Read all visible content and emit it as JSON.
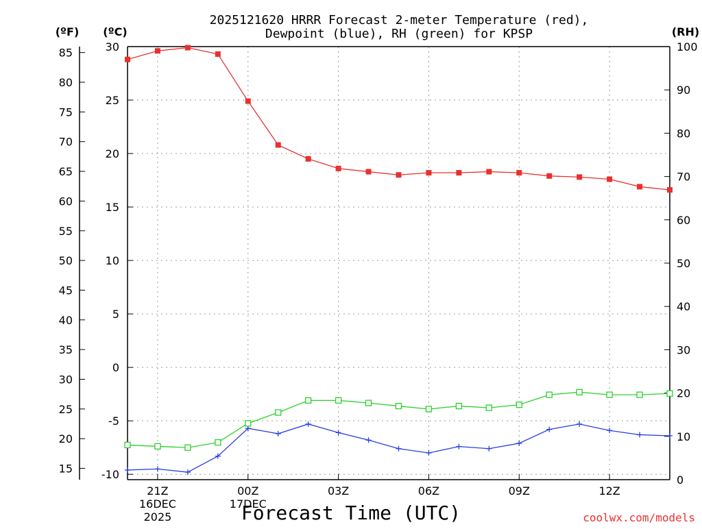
{
  "chart_data": {
    "type": "line",
    "title": "2025121620 HRRR Forecast 2-meter Temperature (red),",
    "subtitle": "Dewpoint (blue), RH (green) for KPSP",
    "xlabel": "Forecast Time (UTC)",
    "credit": "coolwx.com/models",
    "units": {
      "fahrenheit": "(ºF)",
      "celsius": "(ºC)",
      "rh": "(RH)"
    },
    "x_hours": [
      20,
      21,
      22,
      23,
      24,
      25,
      26,
      27,
      28,
      29,
      30,
      31,
      32,
      33,
      34,
      35,
      36,
      37,
      38
    ],
    "xlim": [
      20,
      38
    ],
    "x_ticks": [
      {
        "x": 21,
        "lines": [
          "21Z",
          "16DEC",
          "2025"
        ]
      },
      {
        "x": 24,
        "lines": [
          "00Z",
          "17DEC"
        ]
      },
      {
        "x": 27,
        "lines": [
          "03Z"
        ]
      },
      {
        "x": 30,
        "lines": [
          "06Z"
        ]
      },
      {
        "x": 33,
        "lines": [
          "09Z"
        ]
      },
      {
        "x": 36,
        "lines": [
          "12Z"
        ]
      }
    ],
    "y_celsius": {
      "range": [
        -10.5,
        30
      ],
      "ticks": [
        -10,
        -5,
        0,
        5,
        10,
        15,
        20,
        25,
        30
      ]
    },
    "y_fahrenheit": {
      "ticks": [
        15,
        20,
        25,
        30,
        35,
        40,
        45,
        50,
        55,
        60,
        65,
        70,
        75,
        80,
        85
      ]
    },
    "y_rh": {
      "range": [
        0,
        100
      ],
      "ticks": [
        0,
        10,
        20,
        30,
        40,
        50,
        60,
        70,
        80,
        90,
        100
      ]
    },
    "series": [
      {
        "name": "Temperature",
        "axis": "celsius",
        "color": "#e8312f",
        "marker": "filled-square",
        "values": [
          28.8,
          29.6,
          29.9,
          29.3,
          24.9,
          20.8,
          19.5,
          18.6,
          18.3,
          18.0,
          18.2,
          18.2,
          18.3,
          18.2,
          17.9,
          17.8,
          17.6,
          16.9,
          16.6
        ]
      },
      {
        "name": "Dewpoint",
        "axis": "celsius",
        "color": "#2a3ee0",
        "marker": "plus",
        "values": [
          -9.6,
          -9.5,
          -9.8,
          -8.3,
          -5.7,
          -6.2,
          -5.3,
          -6.1,
          -6.8,
          -7.6,
          -8.0,
          -7.4,
          -7.6,
          -7.1,
          -5.8,
          -5.3,
          -5.9,
          -6.3,
          -6.4
        ]
      },
      {
        "name": "RH",
        "axis": "rh",
        "color": "#2ad12a",
        "marker": "open-square",
        "values": [
          8.0,
          7.7,
          7.4,
          8.6,
          13.0,
          15.5,
          18.3,
          18.3,
          17.7,
          17.0,
          16.3,
          17.0,
          16.6,
          17.3,
          19.6,
          20.2,
          19.6,
          19.6,
          19.9
        ]
      }
    ]
  }
}
